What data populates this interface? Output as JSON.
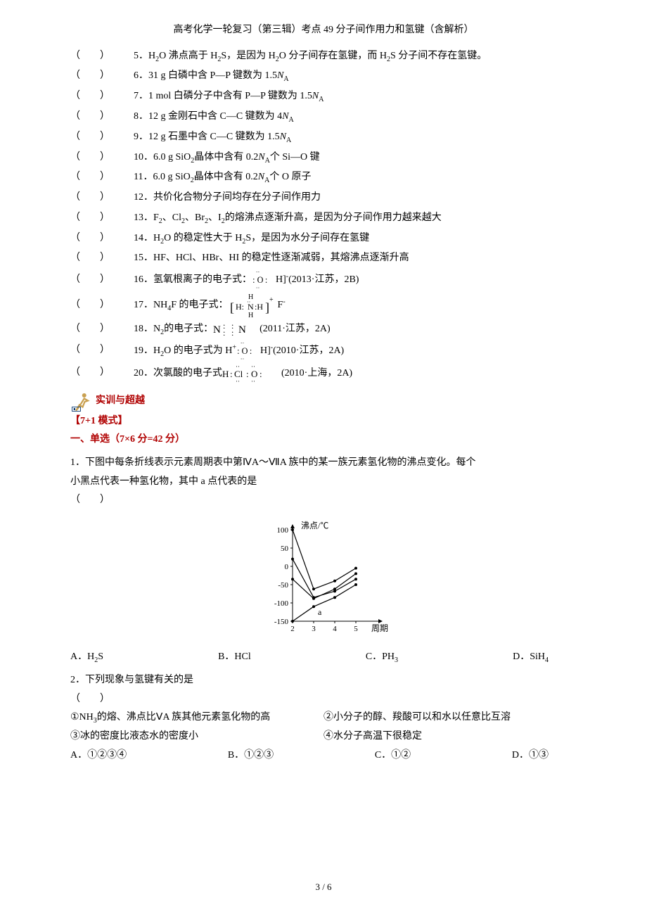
{
  "header": "高考化学一轮复习（第三辑）考点 49 分子间作用力和氢键（含解析）",
  "paren_template": "（　　）",
  "items": [
    {
      "n": "5",
      "text": "H₂O 沸点高于 H₂S，是因为 H₂O 分子间存在氢键，而 H₂S 分子间不存在氢键。"
    },
    {
      "n": "6",
      "text": "31 g 白磷中含 P—P 键数为 1.5Nₐ",
      "italicN": true
    },
    {
      "n": "7",
      "text": "1 mol 白磷分子中含有 P—P 键数为 1.5Nₐ",
      "italicN": true
    },
    {
      "n": "8",
      "text": "12 g 金刚石中含 C—C 键数为 4Nₐ",
      "italicN": true
    },
    {
      "n": "9",
      "text": "12 g 石墨中含 C—C 键数为 1.5Nₐ",
      "italicN": true
    },
    {
      "n": "10",
      "text": "6.0 g SiO₂晶体中含有 0.2Nₐ个 Si—O 键",
      "italicN": true
    },
    {
      "n": "11",
      "text": "6.0 g SiO₂晶体中含有 0.2Nₐ个 O 原子",
      "italicN": true
    },
    {
      "n": "12",
      "text": "共价化合物分子间均存在分子间作用力"
    },
    {
      "n": "13",
      "text": "F₂、Cl₂、Br₂、I₂的熔沸点逐渐升高，是因为分子间作用力越来越大"
    },
    {
      "n": "14",
      "text": "H₂O 的稳定性大于 H₂S，是因为水分子间存在氢键"
    },
    {
      "n": "15",
      "text": "HF、HCl、HBr、HI 的稳定性逐渐减弱，其熔沸点逐渐升高"
    },
    {
      "n": "16",
      "text": "氢氧根离子的电子式：",
      "after": "H]⁻(2013·江苏，2B)",
      "elec": "oh"
    },
    {
      "n": "17",
      "text": "NH₄F 的电子式：",
      "after": "F⁻",
      "elec": "nh4"
    },
    {
      "n": "18",
      "text": "N₂的电子式：",
      "after": "(2011·江苏，2A)",
      "elec": "n2"
    },
    {
      "n": "19",
      "text": "H₂O 的电子式为 H⁺",
      "after": "H]⁻(2010·江苏，2A)",
      "elec": "oh"
    },
    {
      "n": "20",
      "text": "次氯酸的电子式",
      "after": " (2010·上海，2A)",
      "elec": "hclo"
    }
  ],
  "section_label": "实训与超越",
  "mode_label": "【7+1 模式】",
  "single_choice_title": "一、单选（7×6 分=42 分）",
  "q1_stem_a": "1．下图中每条折线表示元素周期表中第ⅣA～ⅦA 族中的某一族元素氢化物的沸点变化。每个",
  "q1_stem_b": "小黑点代表一种氢化物，其中 a 点代表的是",
  "q1_paren": "（　　）",
  "chart": {
    "ylabel": "沸点/℃",
    "xlabel": "周期",
    "yticks": [
      100,
      50,
      0,
      -50,
      -100,
      -150
    ],
    "xticks": [
      2,
      3,
      4,
      5
    ],
    "a_label": "a",
    "bg": "#ffffff",
    "axis_color": "#000000"
  },
  "q1_choices": {
    "A": "A．H₂S",
    "B": "B．HCl",
    "C": "C．PH₃",
    "D": "D．SiH₄"
  },
  "q2_stem": "2．下列现象与氢键有关的是",
  "q2_paren": "（　　）",
  "q2_line1_a": "①NH₃的熔、沸点比ⅤA 族其他元素氢化物的高",
  "q2_line1_b": "②小分子的醇、羧酸可以和水以任意比互溶",
  "q2_line2_a": "③冰的密度比液态水的密度小",
  "q2_line2_b": "④水分子高温下很稳定",
  "q2_choices": {
    "A": "A．①②③④",
    "B": "B．①②③",
    "C": "C．①②",
    "D": "D．①③"
  },
  "footer": "3 / 6"
}
